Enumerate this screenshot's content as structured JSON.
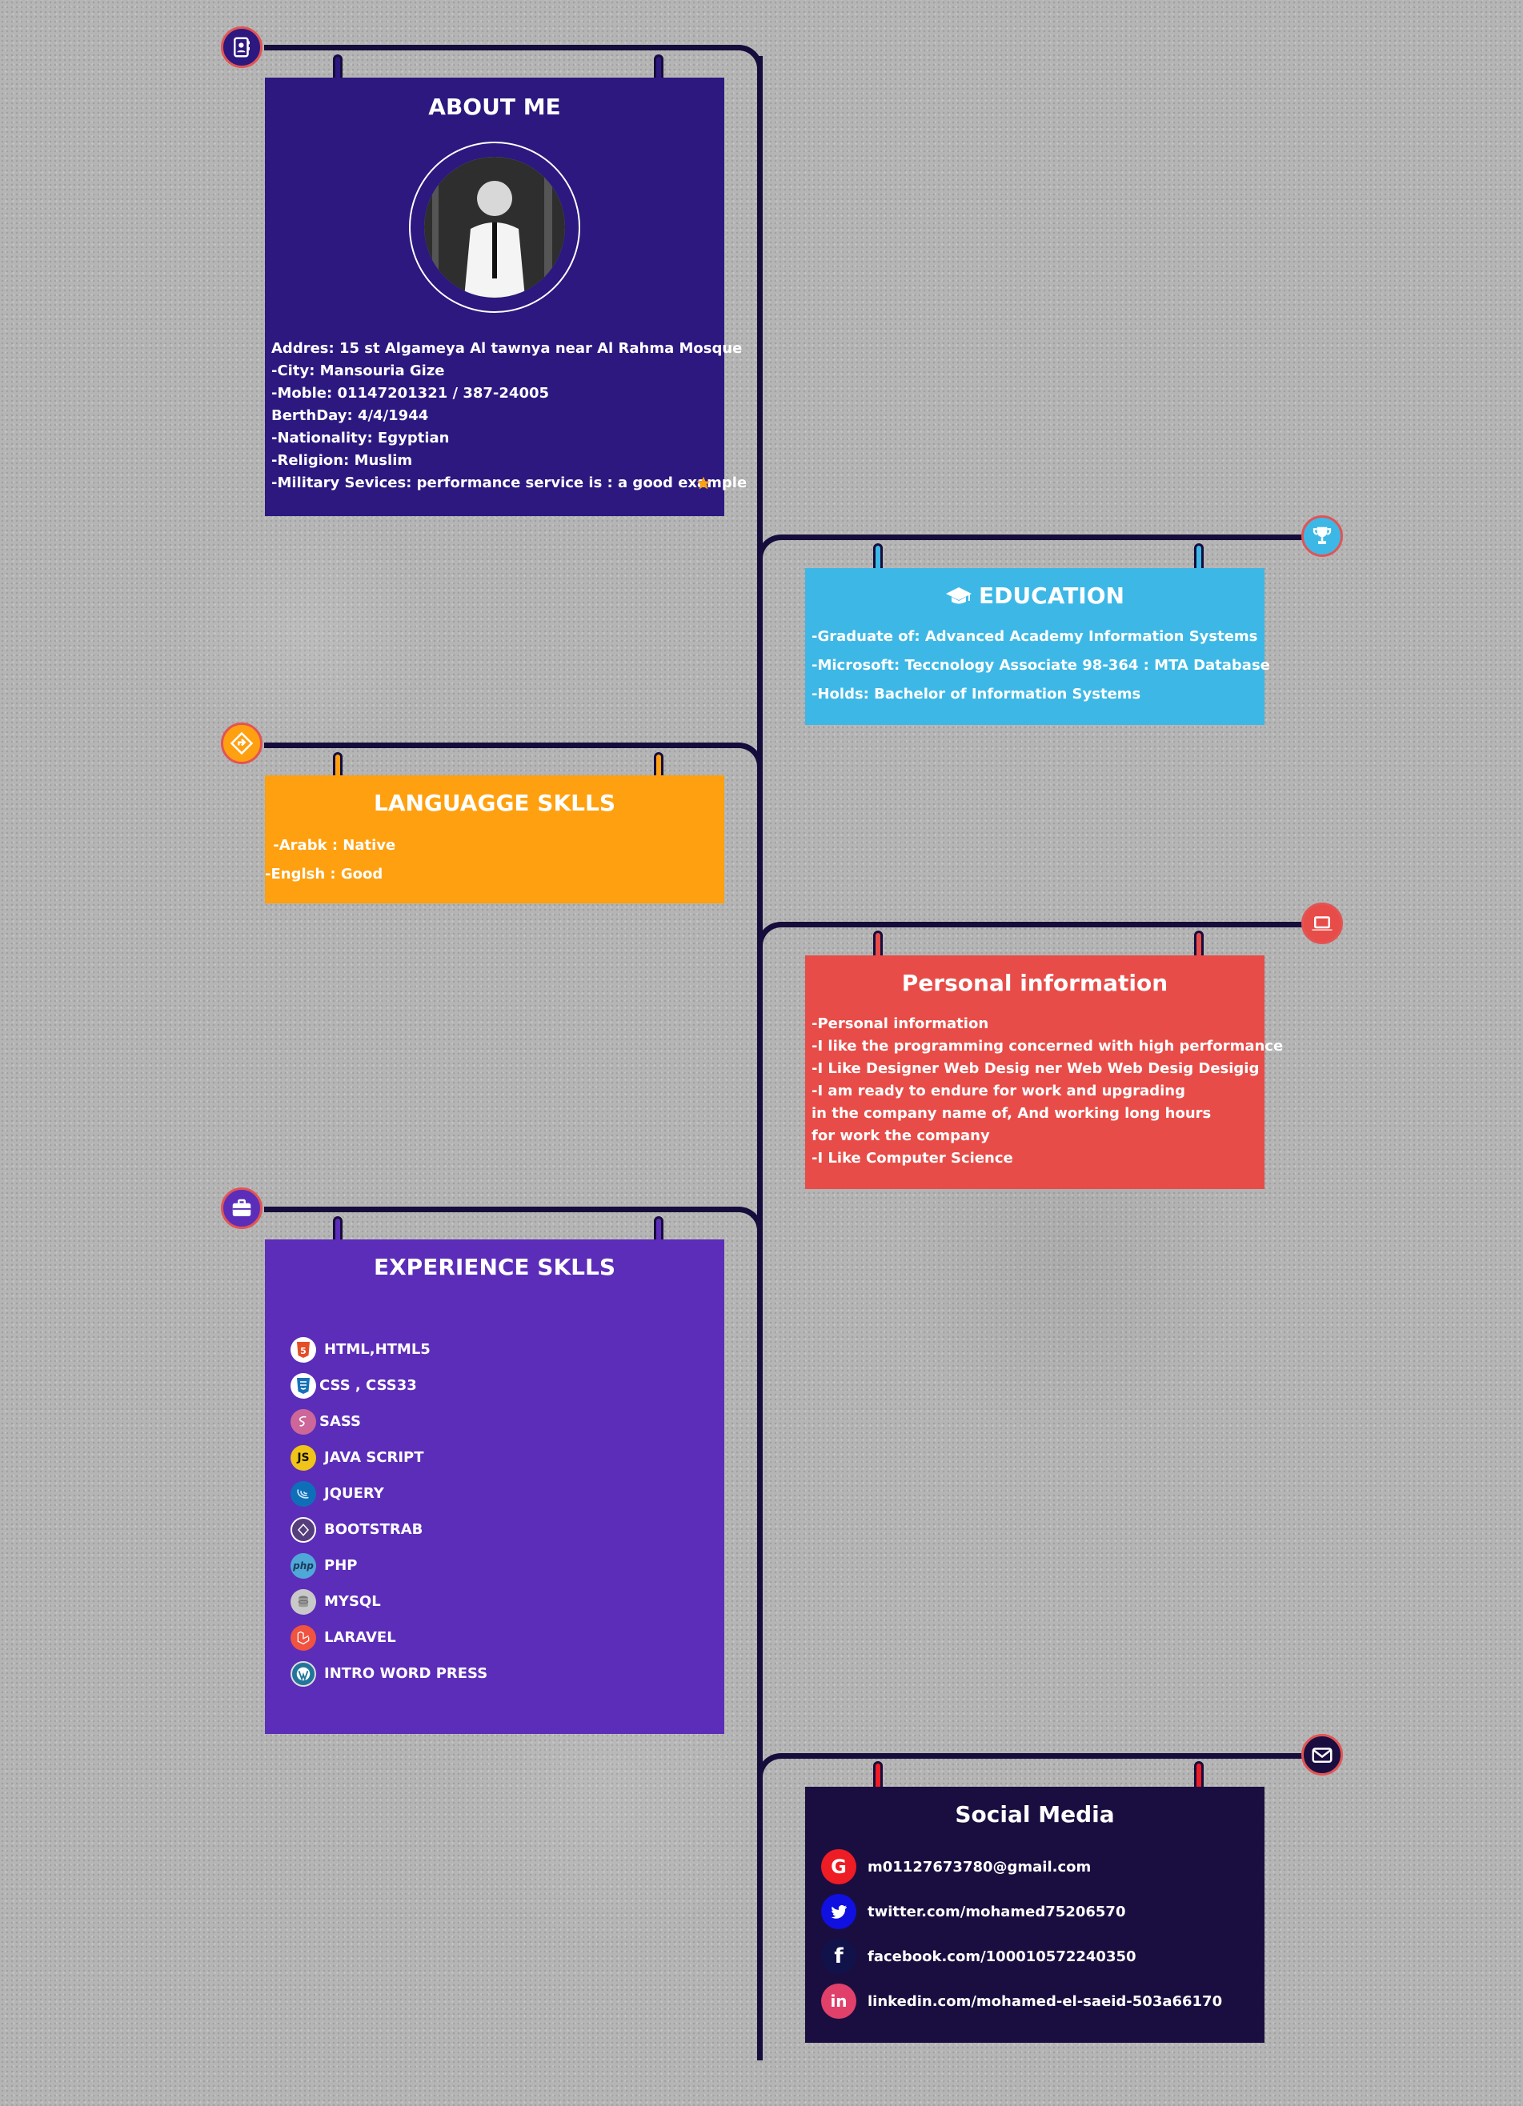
{
  "about": {
    "title": "ABOUT ME",
    "lines": [
      "Addres: 15 st Algameya Al tawnya near Al Rahma Mosque",
      "-City: Mansouria Gize",
      "-Moble: 01147201321 / 387-24005",
      "BerthDay: 4/4/1944",
      "-Nationality: Egyptian",
      "-Religion: Muslim",
      "-Military Sevices: performance service is : a good example"
    ],
    "color": "#2c187f"
  },
  "education": {
    "title": "EDUCATION",
    "lines": [
      "-Graduate of: Advanced Academy Information Systems",
      "-Microsoft: Teccnology Associate 98-364 : MTA Database",
      "-Holds: Bachelor of Information Systems"
    ],
    "color": "#3db8e6"
  },
  "languages": {
    "title": "LANGUAGGE SKLLS",
    "lines": [
      " -Arabk : Native",
      "-Englsh : Good"
    ],
    "color": "#ffa010"
  },
  "personal": {
    "title": "Personal information",
    "lines": [
      "-Personal information",
      "-I like the programming concerned with high performance",
      "-I Like Designer Web Desig ner Web Web Desig Desigig",
      "-I am ready to endure for work and upgrading",
      "in the company name of, And working long hours",
      "for work the company",
      "-I Like Computer Science"
    ],
    "color": "#e84c48"
  },
  "experience": {
    "title": "EXPERIENCE SKLLS",
    "items": [
      {
        "label": "HTML,HTML5",
        "icon": "html5-icon"
      },
      {
        "label": "CSS , CSS33",
        "icon": "css3-icon"
      },
      {
        "label": "SASS",
        "icon": "sass-icon"
      },
      {
        "label": "JAVA SCRIPT",
        "icon": "javascript-icon"
      },
      {
        "label": "JQUERY",
        "icon": "jquery-icon"
      },
      {
        "label": "BOOTSTRAB",
        "icon": "bootstrap-icon"
      },
      {
        "label": "PHP",
        "icon": "php-icon"
      },
      {
        "label": "MYSQL",
        "icon": "mysql-icon"
      },
      {
        "label": "LARAVEL",
        "icon": "laravel-icon"
      },
      {
        "label": "INTRO WORD PRESS",
        "icon": "wordpress-icon"
      }
    ],
    "icon_glyphs": {
      "js": "JS",
      "php": "php"
    },
    "color": "#5c2db8"
  },
  "social": {
    "title": "Social Media",
    "items": [
      {
        "label": "m01127673780@gmail.com",
        "icon": "google-icon"
      },
      {
        "label": "twitter.com/mohamed75206570",
        "icon": "twitter-icon"
      },
      {
        "label": "facebook.com/100010572240350",
        "icon": "facebook-icon"
      },
      {
        "label": "linkedin.com/mohamed-el-saeid-503a66170",
        "icon": "linkedin-icon"
      }
    ],
    "icon_glyphs": {
      "google": "G",
      "facebook": "f",
      "linkedin": "in"
    },
    "color": "#1a0e40"
  },
  "colors": {
    "spine": "#160d3c",
    "badge_border": "#e25454",
    "star": "#ffa010"
  }
}
